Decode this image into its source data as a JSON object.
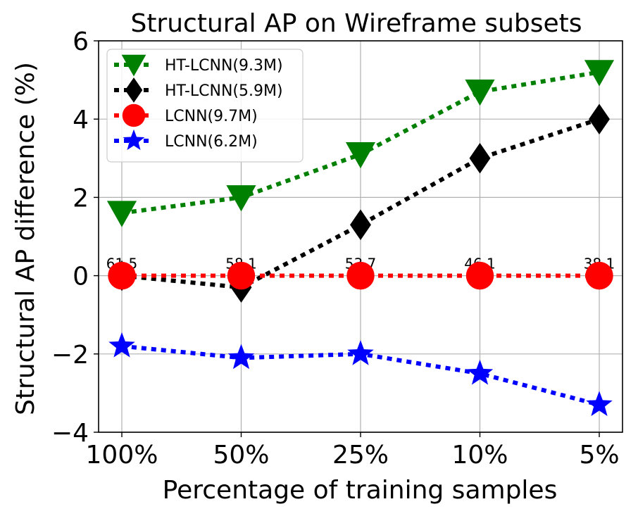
{
  "chart_data": {
    "type": "line",
    "title": "Structural AP on Wireframe subsets",
    "xlabel": "Percentage of training samples",
    "ylabel": "Structural AP difference (%)",
    "categories": [
      "100%",
      "50%",
      "25%",
      "10%",
      "5%"
    ],
    "ylim": [
      -4,
      6
    ],
    "yticks": [
      -4,
      -2,
      0,
      2,
      4,
      6
    ],
    "ytick_labels": [
      "−4",
      "−2",
      "0",
      "2",
      "4",
      "6"
    ],
    "grid": true,
    "legend_position": "top-left",
    "series": [
      {
        "name": "HT-LCNN(9.3M)",
        "color": "#008000",
        "marker": "triangle-down",
        "values": [
          1.6,
          2.0,
          3.1,
          4.7,
          5.2
        ]
      },
      {
        "name": "HT-LCNN(5.9M)",
        "color": "#000000",
        "marker": "diamond",
        "values": [
          0.0,
          -0.3,
          1.3,
          3.0,
          4.0
        ]
      },
      {
        "name": "LCNN(9.7M)",
        "color": "#ff0000",
        "marker": "circle",
        "values": [
          0.0,
          0.0,
          0.0,
          0.0,
          0.0
        ]
      },
      {
        "name": "LCNN(6.2M)",
        "color": "#0000ff",
        "marker": "star",
        "values": [
          -1.8,
          -2.1,
          -2.0,
          -2.5,
          -3.3
        ]
      }
    ],
    "annotations": [
      "61.5",
      "58.1",
      "53.7",
      "46.1",
      "38.1"
    ]
  }
}
